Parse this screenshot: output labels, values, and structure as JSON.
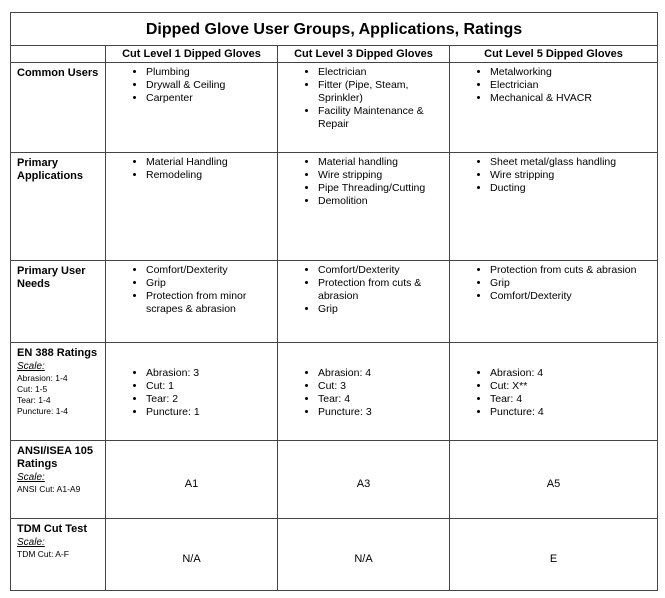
{
  "title": "Dipped Glove User Groups, Applications, Ratings",
  "columns": [
    "Cut Level 1 Dipped Gloves",
    "Cut Level 3 Dipped Gloves",
    "Cut Level 5 Dipped Gloves"
  ],
  "rows": [
    {
      "label": "Common Users",
      "cells": [
        [
          "Plumbing",
          "Drywall & Ceiling",
          "Carpenter"
        ],
        [
          "Electrician",
          "Fitter (Pipe, Steam, Sprinkler)",
          "Facility Maintenance & Repair"
        ],
        [
          "Metalworking",
          "Electrician",
          "Mechanical & HVACR"
        ]
      ]
    },
    {
      "label": "Primary Applications",
      "cells": [
        [
          "Material Handling",
          "Remodeling"
        ],
        [
          "Material handling",
          "Wire stripping",
          "Pipe Threading/Cutting",
          "Demolition"
        ],
        [
          "Sheet metal/glass handling",
          "Wire stripping",
          "Ducting"
        ]
      ]
    },
    {
      "label": "Primary User Needs",
      "cells": [
        [
          "Comfort/Dexterity",
          "Grip",
          "Protection from minor scrapes & abrasion"
        ],
        [
          "Comfort/Dexterity",
          "Protection from cuts & abrasion",
          "Grip"
        ],
        [
          "Protection from cuts & abrasion",
          "Grip",
          "Comfort/Dexterity"
        ]
      ]
    },
    {
      "label": "EN 388 Ratings",
      "scale": "Scale:",
      "scale_items": [
        "Abrasion: 1-4",
        "Cut: 1-5",
        "Tear: 1-4",
        "Puncture: 1-4"
      ],
      "cells": [
        [
          "Abrasion: 3",
          "Cut: 1",
          "Tear: 2",
          "Puncture: 1"
        ],
        [
          "Abrasion: 4",
          "Cut: 3",
          "Tear: 4",
          "Puncture: 3"
        ],
        [
          "Abrasion: 4",
          "Cut: X**",
          "Tear: 4",
          "Puncture: 4"
        ]
      ]
    },
    {
      "label": "ANSI/ISEA 105 Ratings",
      "scale": "Scale:",
      "scale_items": [
        "ANSI Cut: A1-A9"
      ],
      "cells": [
        "A1",
        "A3",
        "A5"
      ]
    },
    {
      "label": "TDM Cut Test",
      "scale": "Scale:",
      "scale_items": [
        "TDM Cut: A-F"
      ],
      "cells": [
        "N/A",
        "N/A",
        "E"
      ]
    }
  ]
}
